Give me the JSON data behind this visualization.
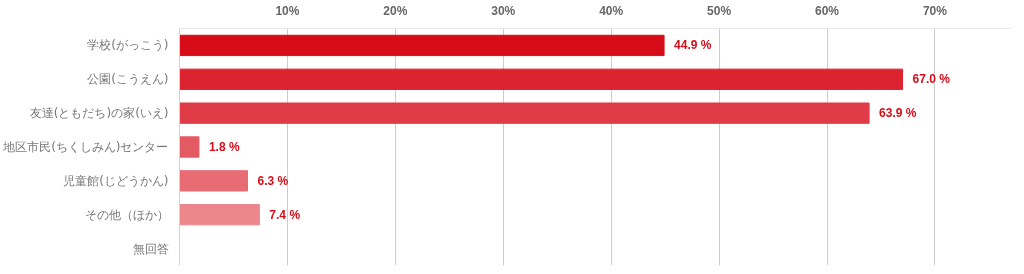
{
  "chart_data": {
    "type": "bar",
    "orientation": "horizontal",
    "categories": [
      "学校(がっこう)",
      "公園(こうえん)",
      "友達(ともだち)の家(いえ)",
      "地区市民(ちくしみん)センター",
      "児童館(じどうかん)",
      "その他（ほか）",
      "無回答"
    ],
    "values": [
      44.9,
      67.0,
      63.9,
      1.8,
      6.3,
      7.4,
      null
    ],
    "colors": [
      "#d70c19",
      "#dc2430",
      "#e03c48",
      "#e45a63",
      "#e86c74",
      "#ec878c",
      "#f0a0a4"
    ],
    "value_labels": [
      "44.9 %",
      "67.0 %",
      "63.9 %",
      "1.8 %",
      "6.3 %",
      "7.4 %",
      null
    ],
    "xlim": [
      0,
      77
    ],
    "xticks": [
      {
        "value": 10,
        "label": "10%"
      },
      {
        "value": 20,
        "label": "20%"
      },
      {
        "value": 30,
        "label": "30%"
      },
      {
        "value": 40,
        "label": "40%"
      },
      {
        "value": 50,
        "label": "50%"
      },
      {
        "value": 60,
        "label": "60%"
      },
      {
        "value": 70,
        "label": "70%"
      }
    ],
    "grid": "x"
  }
}
